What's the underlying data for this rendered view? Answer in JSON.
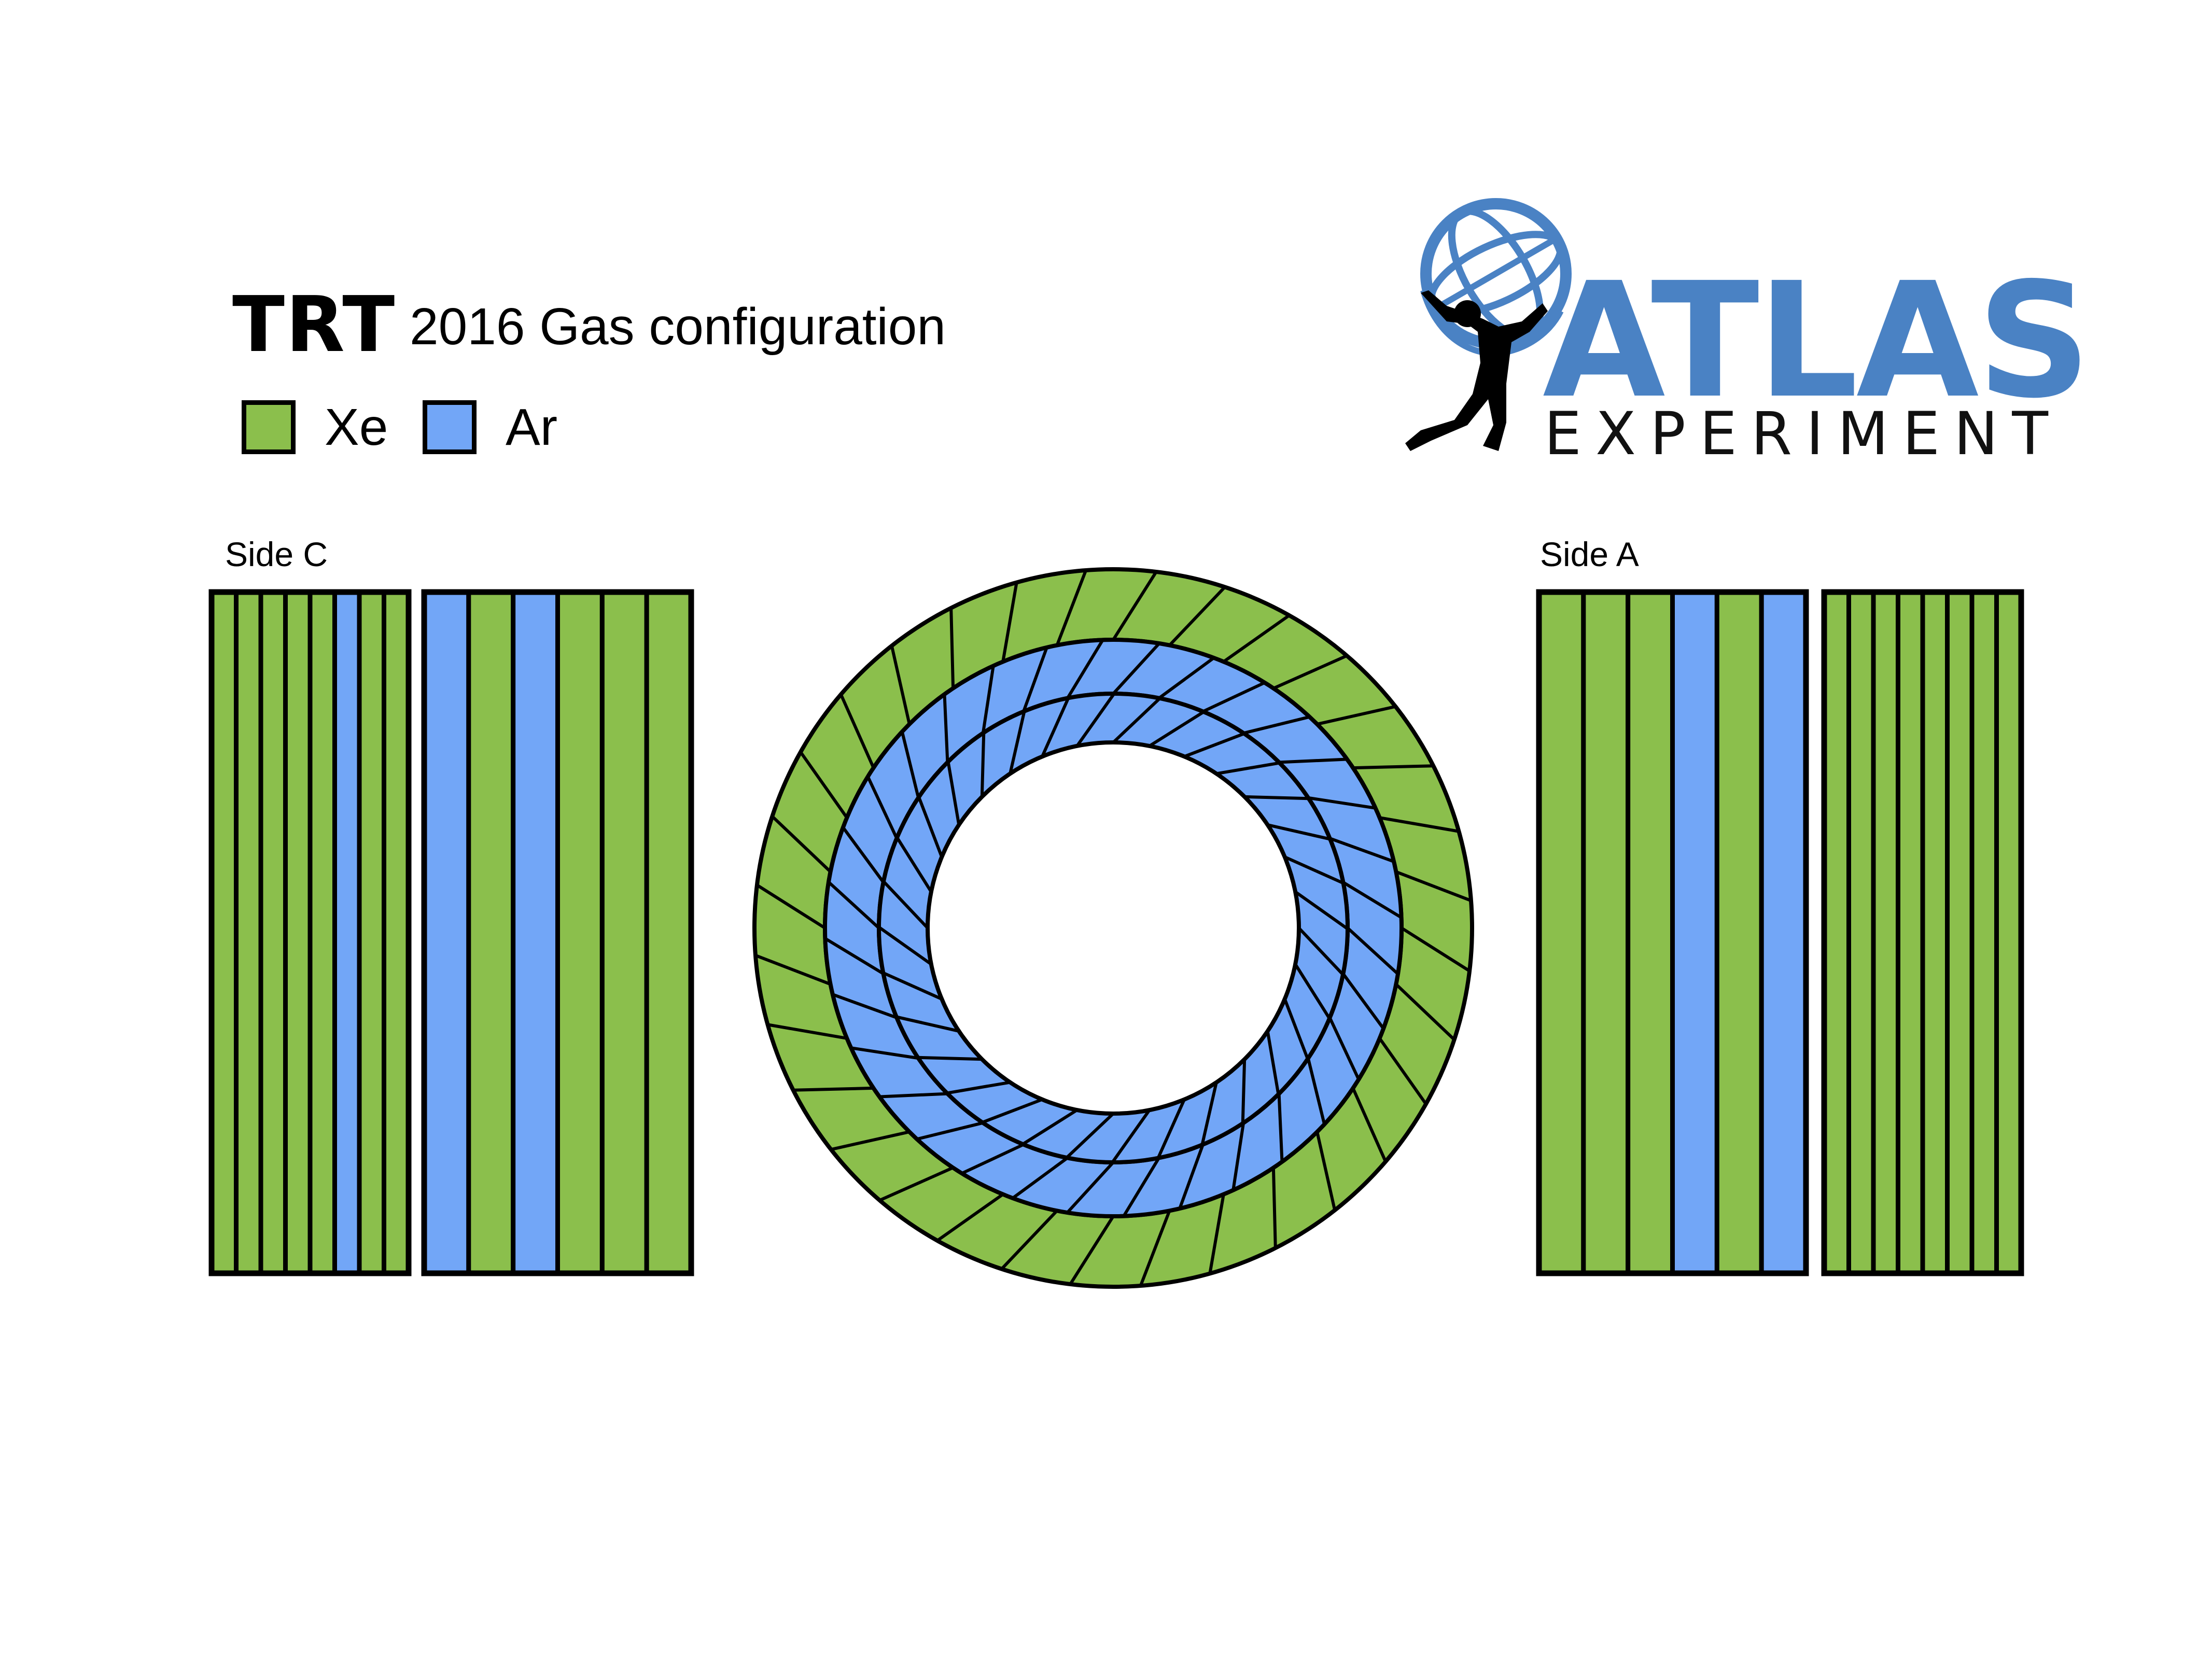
{
  "header": {
    "detector": "TRT",
    "subtitle": "2016 Gas configuration"
  },
  "legend": [
    {
      "label": "Xe",
      "color": "#8bbf4c"
    },
    {
      "label": "Ar",
      "color": "#72a6f7"
    }
  ],
  "logo": {
    "word": "ATLAS",
    "subword": "EXPERIMENT",
    "brand_color": "#4a82c4"
  },
  "sides": {
    "left_label": "Side C",
    "right_label": "Side A"
  },
  "colors": {
    "xe": "#8bbf4c",
    "ar": "#72a6f7",
    "outline": "#000000"
  },
  "wheels": {
    "side_c_small": [
      "Xe",
      "Xe",
      "Xe",
      "Xe",
      "Xe",
      "Ar",
      "Xe",
      "Xe"
    ],
    "side_c_large": [
      "Ar",
      "Xe",
      "Ar",
      "Xe",
      "Xe",
      "Xe"
    ],
    "side_a_large": [
      "Xe",
      "Xe",
      "Xe",
      "Ar",
      "Xe",
      "Ar"
    ],
    "side_a_small": [
      "Xe",
      "Xe",
      "Xe",
      "Xe",
      "Xe",
      "Xe",
      "Xe",
      "Xe"
    ]
  },
  "barrel": {
    "rings": [
      {
        "name": "outer",
        "gas": "Xe",
        "modules": 32
      },
      {
        "name": "middle",
        "gas": "Ar",
        "modules": 32
      },
      {
        "name": "inner",
        "gas": "Ar",
        "modules": 32
      }
    ]
  }
}
